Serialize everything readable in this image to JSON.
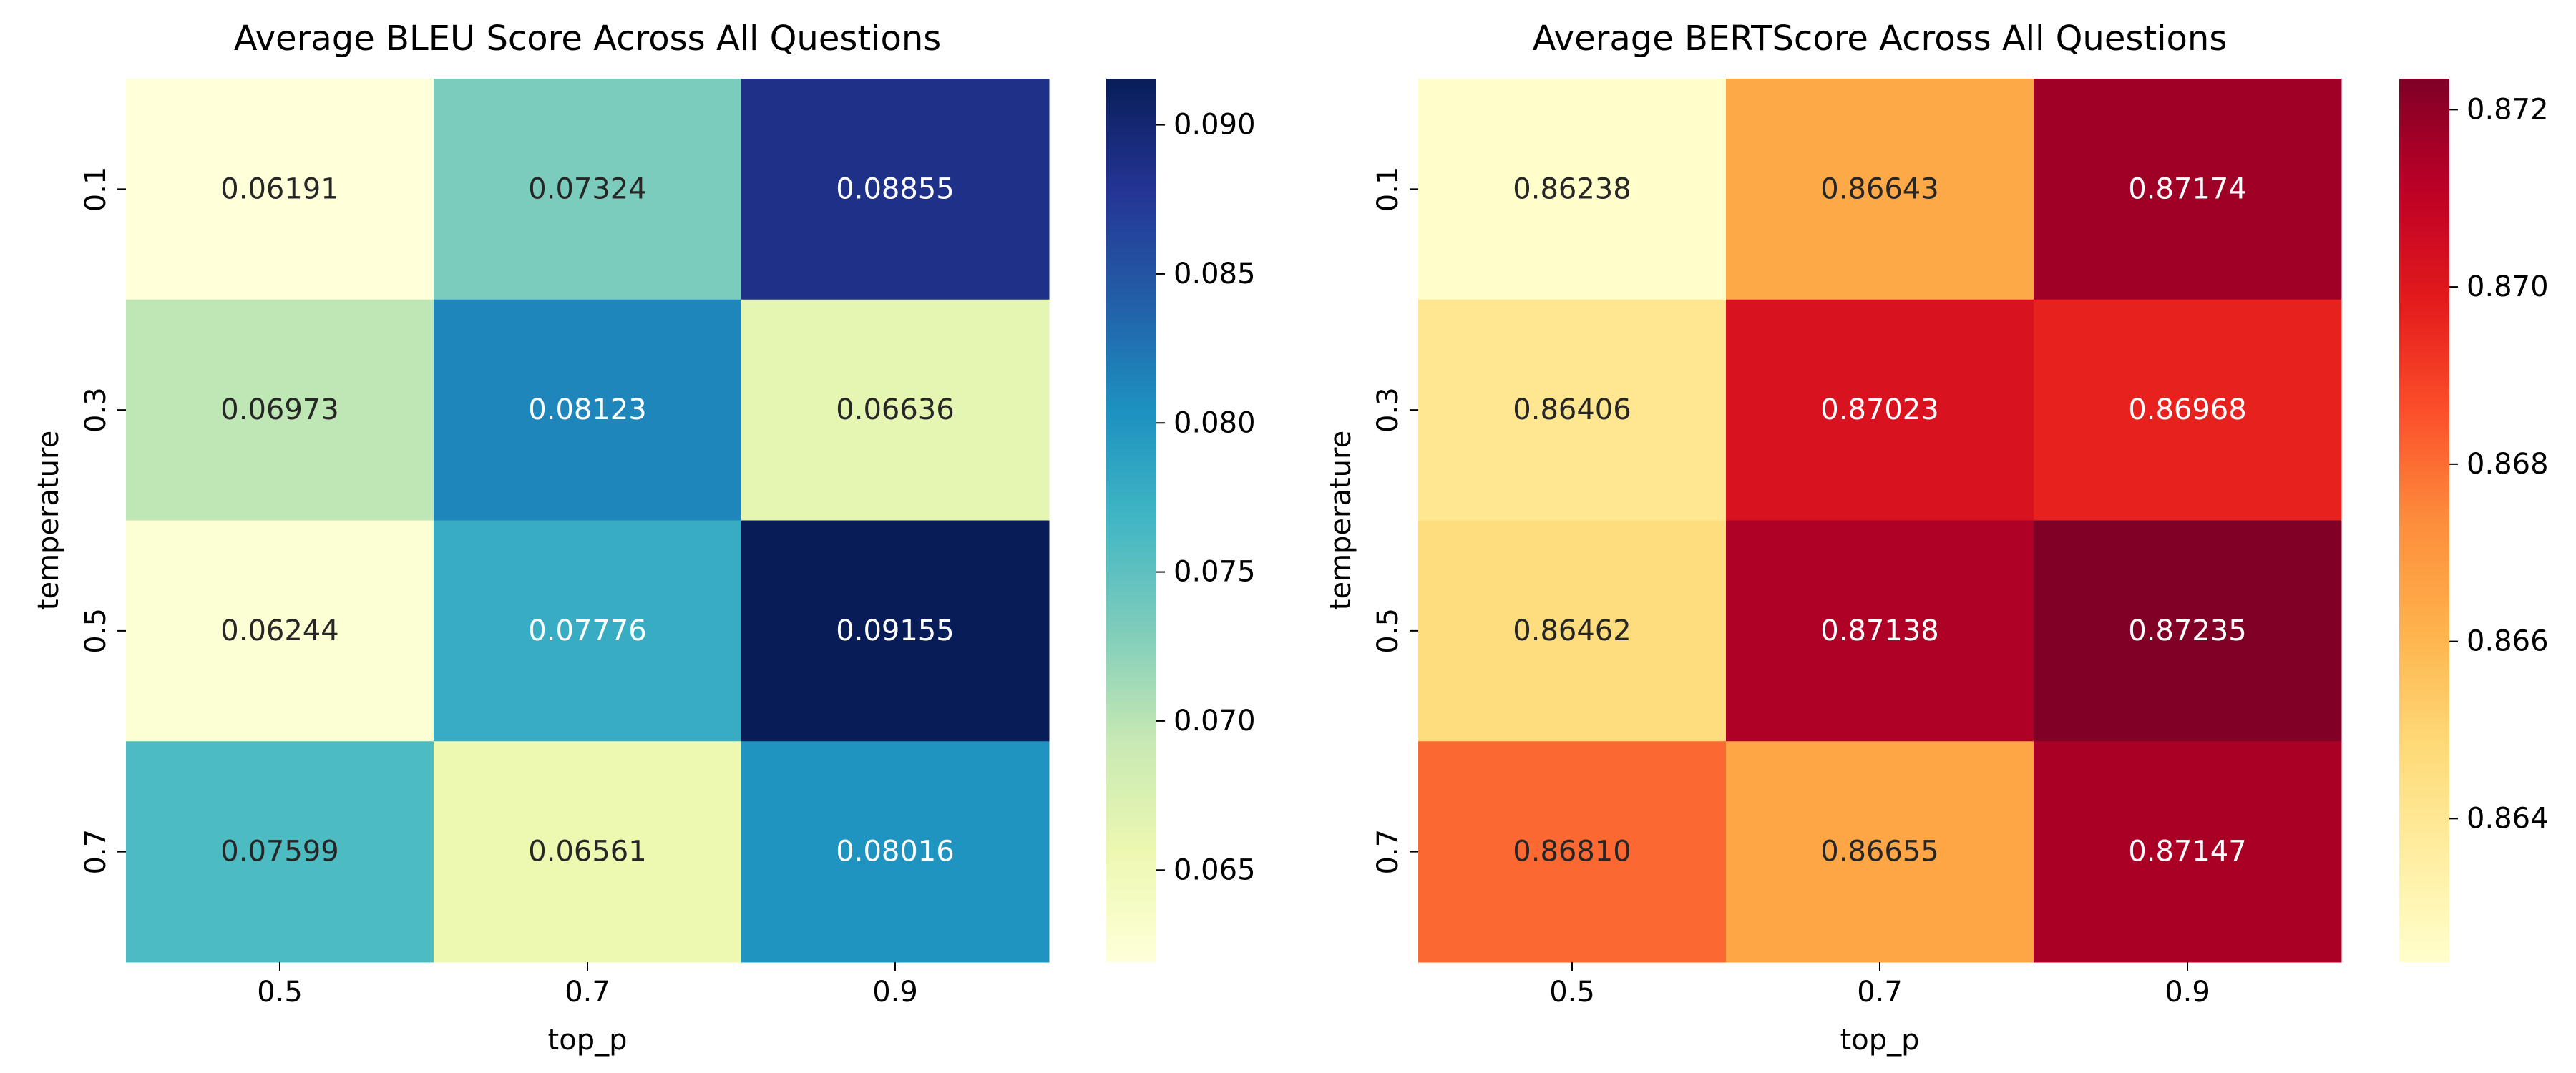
{
  "chart_data": [
    {
      "type": "heatmap",
      "title": "Average BLEU Score Across All Questions",
      "xlabel": "top_p",
      "ylabel": "temperature",
      "x_categories": [
        "0.5",
        "0.7",
        "0.9"
      ],
      "y_categories": [
        "0.1",
        "0.3",
        "0.5",
        "0.7"
      ],
      "values": [
        [
          0.06191,
          0.07324,
          0.08855
        ],
        [
          0.06973,
          0.08123,
          0.06636
        ],
        [
          0.06244,
          0.07776,
          0.09155
        ],
        [
          0.07599,
          0.06561,
          0.08016
        ]
      ],
      "cell_labels": [
        [
          "0.06191",
          "0.07324",
          "0.08855"
        ],
        [
          "0.06973",
          "0.08123",
          "0.06636"
        ],
        [
          "0.06244",
          "0.07776",
          "0.09155"
        ],
        [
          "0.07599",
          "0.06561",
          "0.08016"
        ]
      ],
      "colormap": "YlGnBu",
      "colormap_stops": [
        "#ffffd9",
        "#edf8b1",
        "#c7e9b4",
        "#7fcdbb",
        "#41b6c4",
        "#1d91c0",
        "#225ea8",
        "#253494",
        "#081d58"
      ],
      "vmin": 0.06191,
      "vmax": 0.09155,
      "colorbar_ticks": [
        0.065,
        0.07,
        0.075,
        0.08,
        0.085,
        0.09
      ],
      "colorbar_tick_labels": [
        "0.065",
        "0.070",
        "0.075",
        "0.080",
        "0.085",
        "0.090"
      ]
    },
    {
      "type": "heatmap",
      "title": "Average BERTScore Across All Questions",
      "xlabel": "top_p",
      "ylabel": "temperature",
      "x_categories": [
        "0.5",
        "0.7",
        "0.9"
      ],
      "y_categories": [
        "0.1",
        "0.3",
        "0.5",
        "0.7"
      ],
      "values": [
        [
          0.86238,
          0.86643,
          0.87174
        ],
        [
          0.86406,
          0.87023,
          0.86968
        ],
        [
          0.86462,
          0.87138,
          0.87235
        ],
        [
          0.8681,
          0.86655,
          0.87147
        ]
      ],
      "cell_labels": [
        [
          "0.86238",
          "0.86643",
          "0.87174"
        ],
        [
          "0.86406",
          "0.87023",
          "0.86968"
        ],
        [
          "0.86462",
          "0.87138",
          "0.87235"
        ],
        [
          "0.86810",
          "0.86655",
          "0.87147"
        ]
      ],
      "colormap": "YlOrRd",
      "colormap_stops": [
        "#ffffcc",
        "#ffeda0",
        "#fed976",
        "#feb24c",
        "#fd8d3c",
        "#fc4e2a",
        "#e31a1c",
        "#bd0026",
        "#800026"
      ],
      "vmin": 0.86238,
      "vmax": 0.87235,
      "colorbar_ticks": [
        0.864,
        0.866,
        0.868,
        0.87,
        0.872
      ],
      "colorbar_tick_labels": [
        "0.864",
        "0.866",
        "0.868",
        "0.870",
        "0.872"
      ]
    }
  ]
}
